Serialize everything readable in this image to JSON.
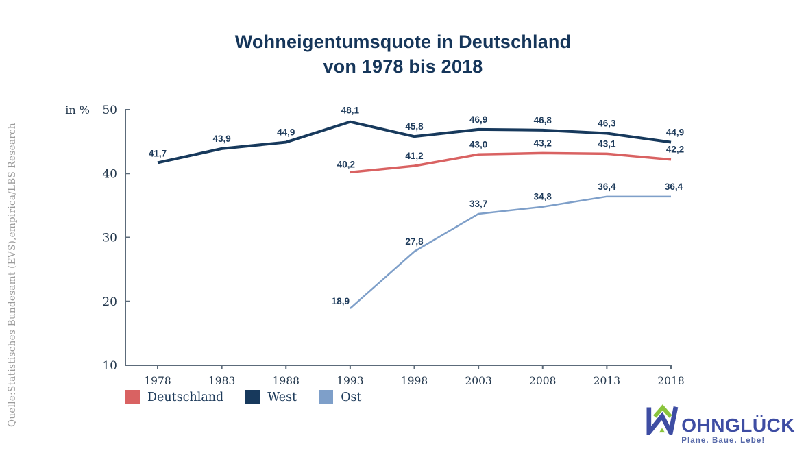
{
  "title": {
    "line1": "Wohneigentumsquote in Deutschland",
    "line2": "von 1978 bis 2018"
  },
  "source_note": "Quelle:Statistisches Bundesamt (EVS),empirica/LBS Research",
  "chart_data": {
    "type": "line",
    "title": "Wohneigentumsquote in Deutschland von 1978 bis 2018",
    "xlabel": "",
    "ylabel": "in %",
    "categories": [
      "1978",
      "1983",
      "1988",
      "1993",
      "1998",
      "2003",
      "2008",
      "2013",
      "2018"
    ],
    "ylim": [
      10,
      50
    ],
    "yticks": [
      10,
      20,
      30,
      40,
      50
    ],
    "grid": false,
    "legend_position": "bottom-left",
    "value_label_format": "comma-decimal-1",
    "series": [
      {
        "name": "Deutschland",
        "color": "#d96262",
        "values": [
          null,
          null,
          null,
          40.2,
          41.2,
          43.0,
          43.2,
          43.1,
          42.2
        ]
      },
      {
        "name": "West",
        "color": "#17395c",
        "values": [
          41.7,
          43.9,
          44.9,
          48.1,
          45.8,
          46.9,
          46.8,
          46.3,
          44.9
        ]
      },
      {
        "name": "Ost",
        "color": "#7e9fc9",
        "values": [
          null,
          null,
          null,
          18.9,
          27.8,
          33.7,
          34.8,
          36.4,
          36.4
        ]
      }
    ],
    "axis_color": "#5c6b7a",
    "label_color": "#1d3a5a"
  },
  "logo": {
    "wordmark_rest": "OHNGLÜCK",
    "tagline": "Plane. Baue. Lebe!",
    "blue": "#3e4da3",
    "green": "#8ac43c"
  }
}
